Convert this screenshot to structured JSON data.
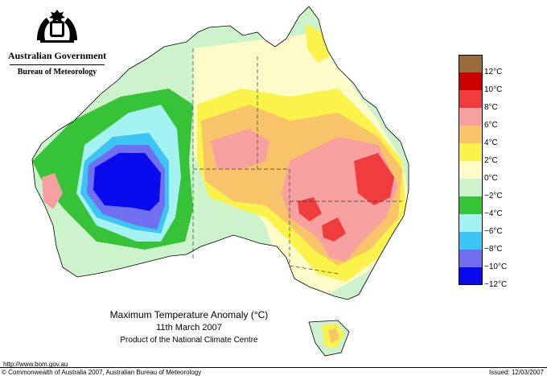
{
  "header": {
    "government": "Australian Government",
    "bureau": "Bureau of Meteorology",
    "crest_icon": "coat-of-arms-icon"
  },
  "caption": {
    "title": "Maximum Temperature Anomaly (°C)",
    "date": "11th March 2007",
    "product": "Product of the National Climate Centre"
  },
  "footer": {
    "url": "http://www.bom.gov.au",
    "copyright": "© Commonwealth of Australia 2007, Australian Bureau of Meteorology",
    "issued": "Issued: 12/03/2007"
  },
  "legend": {
    "labels": [
      "12°C",
      "10°C",
      "8°C",
      "6°C",
      "4°C",
      "2°C",
      "0°C",
      "−2°C",
      "−4°C",
      "−6°C",
      "−8°C",
      "−10°C",
      "−12°C"
    ],
    "colors": [
      "#9a6b3a",
      "#cc0000",
      "#f03c3c",
      "#f6a0a0",
      "#f7c46a",
      "#fbf24a",
      "#fdfcc8",
      "#cdf3cd",
      "#37c337",
      "#a5f2f2",
      "#3cc4f4",
      "#6f6ff0",
      "#0a0aee"
    ]
  }
}
